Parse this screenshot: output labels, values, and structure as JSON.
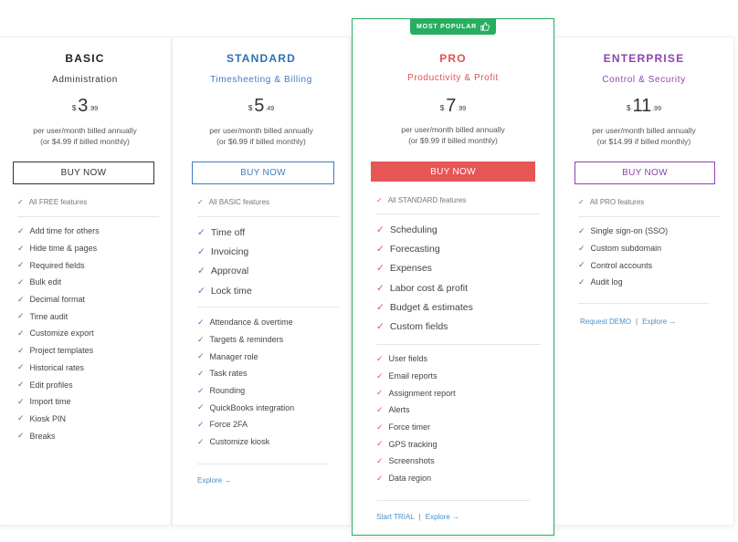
{
  "colors": {
    "basic_accent": "#222222",
    "standard_accent": "#3f7bc4",
    "pro_accent": "#e05252",
    "enterprise_accent": "#8e44ad",
    "popular_green": "#27ae60",
    "link_blue": "#4a90c8"
  },
  "check_glyph": "✓",
  "plans": [
    {
      "name": "BASIC",
      "subtitle": "Administration",
      "currency": "$",
      "price_int": "3",
      "price_cents": ".99",
      "billing_line1": "per user/month billed annually",
      "billing_line2": "(or $4.99 if billed monthly)",
      "button_label": "BUY NOW",
      "all_features": "All FREE features",
      "features": [
        "Add time for others",
        "Hide time & pages",
        "Required fields",
        "Bulk edit",
        "Decimal format",
        "Time audit",
        "Customize export",
        "Project templates",
        "Historical rates",
        "Edit profiles",
        "Import time",
        "Kiosk PIN",
        "Breaks"
      ]
    },
    {
      "name": "STANDARD",
      "subtitle": "Timesheeting & Billing",
      "currency": "$",
      "price_int": "5",
      "price_cents": ".49",
      "billing_line1": "per user/month billed annually",
      "billing_line2": "(or $6.99 if billed monthly)",
      "button_label": "BUY NOW",
      "all_features": "All BASIC features",
      "key_features": [
        "Time off",
        "Invoicing",
        "Approval",
        "Lock time"
      ],
      "features": [
        "Attendance & overtime",
        "Targets & reminders",
        "Manager role",
        "Task rates",
        "Rounding",
        "QuickBooks integration",
        "Force 2FA",
        "Customize kiosk"
      ],
      "footer": {
        "explore": "Explore →"
      }
    },
    {
      "name": "PRO",
      "subtitle": "Productivity & Profit",
      "badge": "MOST POPULAR",
      "currency": "$",
      "price_int": "7",
      "price_cents": ".99",
      "billing_line1": "per user/month billed annually",
      "billing_line2": "(or $9.99 if billed monthly)",
      "button_label": "BUY NOW",
      "all_features": "All STANDARD features",
      "key_features": [
        "Scheduling",
        "Forecasting",
        "Expenses",
        "Labor cost & profit",
        "Budget & estimates",
        "Custom fields"
      ],
      "features": [
        "User fields",
        "Email reports",
        "Assignment report",
        "Alerts",
        "Force timer",
        "GPS tracking",
        "Screenshots",
        "Data region"
      ],
      "footer": {
        "trial": "Start TRIAL",
        "separator": "|",
        "explore": "Explore →"
      }
    },
    {
      "name": "ENTERPRISE",
      "subtitle": "Control & Security",
      "currency": "$",
      "price_int": "11",
      "price_cents": ".99",
      "billing_line1": "per user/month billed annually",
      "billing_line2": "(or $14.99 if billed monthly)",
      "button_label": "BUY NOW",
      "all_features": "All PRO features",
      "features": [
        "Single sign-on (SSO)",
        "Custom subdomain",
        "Control accounts",
        "Audit log"
      ],
      "footer": {
        "demo": "Request DEMO",
        "separator": "|",
        "explore": "Explore →"
      }
    }
  ]
}
